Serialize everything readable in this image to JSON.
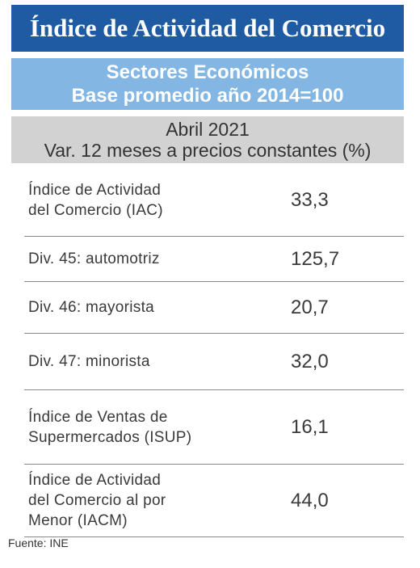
{
  "title": "Índice de Actividad del Comercio",
  "sector_header": {
    "line1": "Sectores Económicos",
    "line2": "Base promedio año 2014=100"
  },
  "period_header": {
    "line1": "Abril 2021",
    "line2": "Var. 12 meses a precios constantes (%)"
  },
  "rows": [
    {
      "label_lines": [
        "Índice de Actividad",
        "del Comercio (IAC)"
      ],
      "value": "33,3"
    },
    {
      "label_lines": [
        "Div. 45: automotriz"
      ],
      "value": "125,7"
    },
    {
      "label_lines": [
        "Div. 46: mayorista"
      ],
      "value": "20,7"
    },
    {
      "label_lines": [
        "Div. 47: minorista"
      ],
      "value": "32,0"
    },
    {
      "label_lines": [
        "Índice de Ventas de",
        "Supermercados (ISUP)"
      ],
      "value": "16,1"
    },
    {
      "label_lines": [
        "Índice de Actividad",
        "del Comercio al por",
        "Menor (IACM)"
      ],
      "value": "44,0"
    }
  ],
  "source": "Fuente: INE"
}
